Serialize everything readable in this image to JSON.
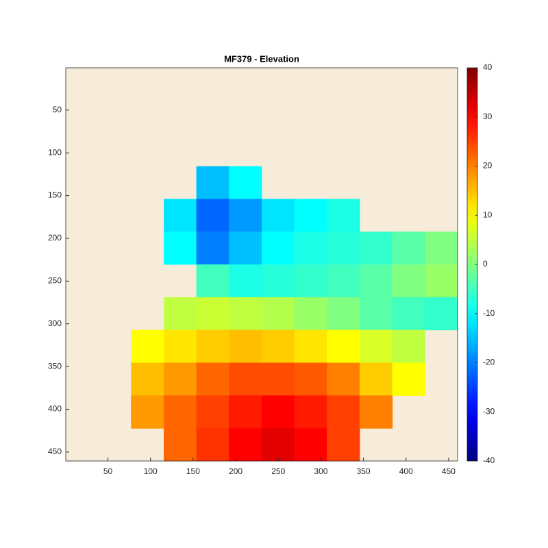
{
  "chart_data": {
    "type": "heatmap",
    "title": "MF379 - Elevation",
    "x": [
      19.7,
      58,
      96.3,
      134.7,
      173,
      211.3,
      249.7,
      288,
      326.3,
      364.7,
      403,
      441.3
    ],
    "y": [
      19.7,
      58,
      96.3,
      134.7,
      173,
      211.3,
      249.7,
      288,
      326.3,
      364.7,
      403,
      441.3
    ],
    "z": [
      [
        null,
        null,
        null,
        null,
        null,
        null,
        null,
        null,
        null,
        null,
        null,
        null
      ],
      [
        null,
        null,
        null,
        null,
        null,
        null,
        null,
        null,
        null,
        null,
        null,
        null
      ],
      [
        null,
        null,
        null,
        null,
        null,
        null,
        null,
        null,
        null,
        null,
        null,
        null
      ],
      [
        null,
        null,
        null,
        null,
        -15,
        -10,
        null,
        null,
        null,
        null,
        null,
        null
      ],
      [
        null,
        null,
        null,
        -12,
        -22,
        -18,
        -12,
        -10,
        -8,
        null,
        null,
        null
      ],
      [
        null,
        null,
        null,
        -10,
        -20,
        -15,
        -10,
        -8,
        -7,
        -6,
        -3,
        0
      ],
      [
        null,
        null,
        null,
        null,
        -5,
        -8,
        -7,
        -6,
        -5,
        -3,
        0,
        2
      ],
      [
        null,
        null,
        null,
        5,
        6,
        5,
        4,
        2,
        0,
        -3,
        -5,
        -6
      ],
      [
        null,
        null,
        10,
        12,
        14,
        15,
        14,
        12,
        10,
        7,
        5,
        null
      ],
      [
        null,
        null,
        15,
        18,
        22,
        24,
        24,
        23,
        20,
        14,
        10,
        null
      ],
      [
        null,
        null,
        18,
        22,
        25,
        28,
        30,
        28,
        25,
        20,
        null,
        null
      ],
      [
        null,
        null,
        null,
        22,
        26,
        30,
        32,
        30,
        25,
        null,
        null,
        null
      ]
    ],
    "xlim": [
      0.5,
      460.5
    ],
    "ylim": [
      0.5,
      460.5
    ],
    "y_reversed": true,
    "xticks": [
      50,
      100,
      150,
      200,
      250,
      300,
      350,
      400,
      450
    ],
    "yticks": [
      50,
      100,
      150,
      200,
      250,
      300,
      350,
      400,
      450
    ],
    "colormap": "jet",
    "clim": [
      -40,
      40
    ],
    "cticks": [
      -40,
      -30,
      -20,
      -10,
      0,
      10,
      20,
      30,
      40
    ]
  }
}
